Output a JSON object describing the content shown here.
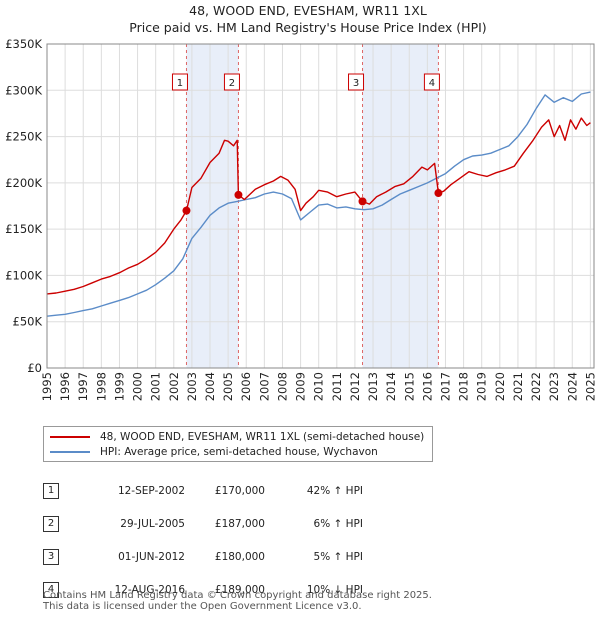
{
  "chart_data": {
    "type": "line",
    "title": "48, WOOD END, EVESHAM, WR11 1XL",
    "subtitle": "Price paid vs. HM Land Registry's House Price Index (HPI)",
    "xlabel": "",
    "ylabel": "",
    "xlim": [
      1995.0,
      2025.2
    ],
    "ylim": [
      0,
      350000
    ],
    "grid": true,
    "y_ticks": [
      {
        "value": 0,
        "label": "£0"
      },
      {
        "value": 50000,
        "label": "£50K"
      },
      {
        "value": 100000,
        "label": "£100K"
      },
      {
        "value": 150000,
        "label": "£150K"
      },
      {
        "value": 200000,
        "label": "£200K"
      },
      {
        "value": 250000,
        "label": "£250K"
      },
      {
        "value": 300000,
        "label": "£300K"
      },
      {
        "value": 350000,
        "label": "£350K"
      }
    ],
    "x_ticks": [
      "1995",
      "1996",
      "1997",
      "1998",
      "1999",
      "2000",
      "2001",
      "2002",
      "2003",
      "2004",
      "2005",
      "2006",
      "2007",
      "2008",
      "2009",
      "2010",
      "2011",
      "2012",
      "2013",
      "2014",
      "2015",
      "2016",
      "2017",
      "2018",
      "2019",
      "2020",
      "2021",
      "2022",
      "2023",
      "2024",
      "2025"
    ],
    "shaded_periods": [
      [
        2002.7,
        2005.57
      ],
      [
        2012.42,
        2016.61
      ]
    ],
    "series": [
      {
        "name": "48, WOOD END, EVESHAM, WR11 1XL (semi-detached house)",
        "color": "#cc0000",
        "x": [
          1995.0,
          1995.5,
          1996.0,
          1996.5,
          1997.0,
          1997.5,
          1998.0,
          1998.5,
          1999.0,
          1999.5,
          2000.0,
          2000.5,
          2001.0,
          2001.5,
          2002.0,
          2002.4,
          2002.7,
          2003.0,
          2003.5,
          2004.0,
          2004.5,
          2004.8,
          2005.0,
          2005.3,
          2005.5,
          2005.57,
          2005.9,
          2006.5,
          2007.0,
          2007.5,
          2007.9,
          2008.3,
          2008.7,
          2009.0,
          2009.3,
          2009.7,
          2010.0,
          2010.5,
          2011.0,
          2011.5,
          2012.0,
          2012.42,
          2012.8,
          2013.2,
          2013.7,
          2014.2,
          2014.7,
          2015.2,
          2015.7,
          2016.0,
          2016.4,
          2016.61,
          2016.9,
          2017.3,
          2017.8,
          2018.3,
          2018.8,
          2019.3,
          2019.8,
          2020.3,
          2020.8,
          2021.3,
          2021.8,
          2022.3,
          2022.7,
          2023.0,
          2023.3,
          2023.6,
          2023.9,
          2024.2,
          2024.5,
          2024.8,
          2025.0
        ],
        "values": [
          80000,
          81000,
          83000,
          85000,
          88000,
          92000,
          96000,
          99000,
          103000,
          108000,
          112000,
          118000,
          125000,
          135000,
          150000,
          160000,
          170000,
          195000,
          205000,
          222000,
          232000,
          246000,
          245000,
          240000,
          246000,
          187000,
          182000,
          193000,
          198000,
          202000,
          207000,
          203000,
          193000,
          170000,
          178000,
          185000,
          192000,
          190000,
          185000,
          188000,
          190000,
          180000,
          177000,
          185000,
          190000,
          196000,
          199000,
          207000,
          217000,
          214000,
          221000,
          189000,
          191000,
          198000,
          205000,
          212000,
          209000,
          207000,
          211000,
          214000,
          218000,
          232000,
          245000,
          260000,
          268000,
          250000,
          262000,
          246000,
          268000,
          258000,
          270000,
          262000,
          265000
        ]
      },
      {
        "name": "HPI: Average price, semi-detached house, Wychavon",
        "color": "#5b8cc8",
        "x": [
          1995.0,
          1995.5,
          1996.0,
          1996.5,
          1997.0,
          1997.5,
          1998.0,
          1998.5,
          1999.0,
          1999.5,
          2000.0,
          2000.5,
          2001.0,
          2001.5,
          2002.0,
          2002.5,
          2003.0,
          2003.5,
          2004.0,
          2004.5,
          2005.0,
          2005.5,
          2006.0,
          2006.5,
          2007.0,
          2007.5,
          2008.0,
          2008.5,
          2009.0,
          2009.5,
          2010.0,
          2010.5,
          2011.0,
          2011.5,
          2012.0,
          2012.5,
          2013.0,
          2013.5,
          2014.0,
          2014.5,
          2015.0,
          2015.5,
          2016.0,
          2016.5,
          2017.0,
          2017.5,
          2018.0,
          2018.5,
          2019.0,
          2019.5,
          2020.0,
          2020.5,
          2021.0,
          2021.5,
          2022.0,
          2022.5,
          2023.0,
          2023.5,
          2024.0,
          2024.5,
          2025.0
        ],
        "values": [
          56000,
          57000,
          58000,
          60000,
          62000,
          64000,
          67000,
          70000,
          73000,
          76000,
          80000,
          84000,
          90000,
          97000,
          105000,
          118000,
          140000,
          152000,
          165000,
          173000,
          178000,
          180000,
          182000,
          184000,
          188000,
          190000,
          188000,
          183000,
          160000,
          168000,
          176000,
          177000,
          173000,
          174000,
          172000,
          171000,
          172000,
          176000,
          182000,
          188000,
          192000,
          196000,
          200000,
          205000,
          210000,
          218000,
          225000,
          229000,
          230000,
          232000,
          236000,
          240000,
          250000,
          263000,
          280000,
          295000,
          287000,
          292000,
          288000,
          296000,
          298000
        ]
      }
    ],
    "sale_markers": [
      {
        "label": "1",
        "x": 2002.7,
        "y": 170000
      },
      {
        "label": "2",
        "x": 2005.57,
        "y": 187000
      },
      {
        "label": "3",
        "x": 2012.42,
        "y": 180000
      },
      {
        "label": "4",
        "x": 2016.61,
        "y": 189000
      }
    ]
  },
  "sales": [
    {
      "num": "1",
      "date": "12-SEP-2002",
      "price": "£170,000",
      "hpi": "42% ↑ HPI"
    },
    {
      "num": "2",
      "date": "29-JUL-2005",
      "price": "£187,000",
      "hpi": "6% ↑ HPI"
    },
    {
      "num": "3",
      "date": "01-JUN-2012",
      "price": "£180,000",
      "hpi": "5% ↑ HPI"
    },
    {
      "num": "4",
      "date": "12-AUG-2016",
      "price": "£189,000",
      "hpi": "10% ↓ HPI"
    }
  ],
  "footer": {
    "line1": "Contains HM Land Registry data © Crown copyright and database right 2025.",
    "line2": "This data is licensed under the Open Government Licence v3.0."
  }
}
